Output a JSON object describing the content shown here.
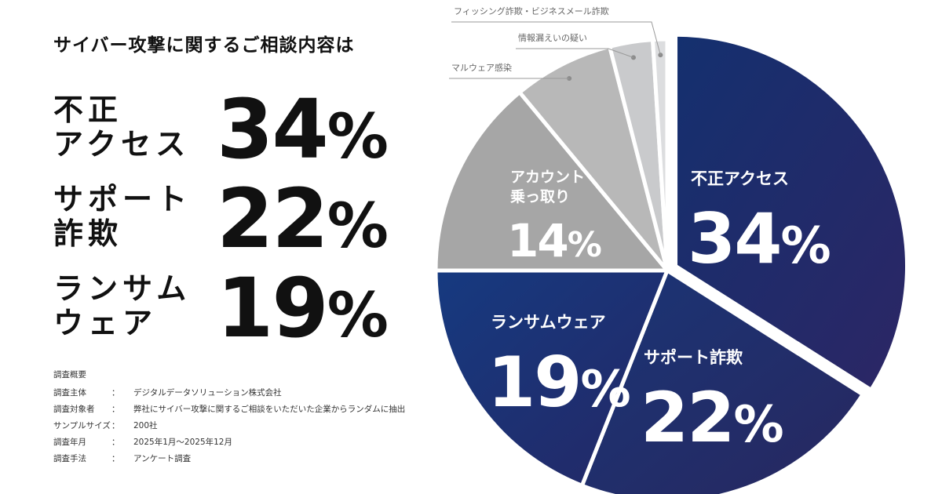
{
  "headline": "サイバー攻撃に関するご相談内容は",
  "stats": [
    {
      "label": "不正\nアクセス",
      "value": "34",
      "unit": "%"
    },
    {
      "label": "サポート\n詐欺",
      "value": "22",
      "unit": "%"
    },
    {
      "label": "ランサム\nウェア",
      "value": "19",
      "unit": "%"
    }
  ],
  "survey": {
    "title": "調査概要",
    "separator": "：",
    "rows": [
      {
        "key": "調査主体",
        "value": "デジタルデータソリューション株式会社"
      },
      {
        "key": "調査対象者",
        "value": "弊社にサイバー攻撃に関するご相談をいただいた企業からランダムに抽出"
      },
      {
        "key": "サンプルサイズ",
        "value": "200社"
      },
      {
        "key": "調査年月",
        "value": "2025年1月〜2025年12月"
      },
      {
        "key": "調査手法",
        "value": "アンケート調査"
      }
    ]
  },
  "chart_data": {
    "type": "pie",
    "title": "サイバー攻撃に関するご相談内容は",
    "start_angle_deg": 0,
    "direction": "clockwise",
    "slices": [
      {
        "label": "不正アクセス",
        "value": 34,
        "display": "34%",
        "color": "#1f2d6e"
      },
      {
        "label": "サポート詐欺",
        "value": 22,
        "display": "22%",
        "color": "#1c2a6a"
      },
      {
        "label": "ランサムウェア",
        "value": 19,
        "display": "19%",
        "color": "#1a2a68"
      },
      {
        "label": "アカウント乗っ取り",
        "value": 14,
        "display": "14%",
        "color": "#a6a6a6"
      },
      {
        "label": "マルウェア感染",
        "value": 7,
        "display": "",
        "color": "#b8b8b8"
      },
      {
        "label": "情報漏えいの疑い",
        "value": 3,
        "display": "",
        "color": "#c9cacc"
      },
      {
        "label": "フィッシング詐欺・ビジネスメール詐欺",
        "value": 1,
        "display": "",
        "color": "#dcdddf"
      }
    ],
    "slice_label_lines": {
      "アカウント乗っ取り": [
        "アカウント",
        "乗っ取り"
      ]
    }
  }
}
